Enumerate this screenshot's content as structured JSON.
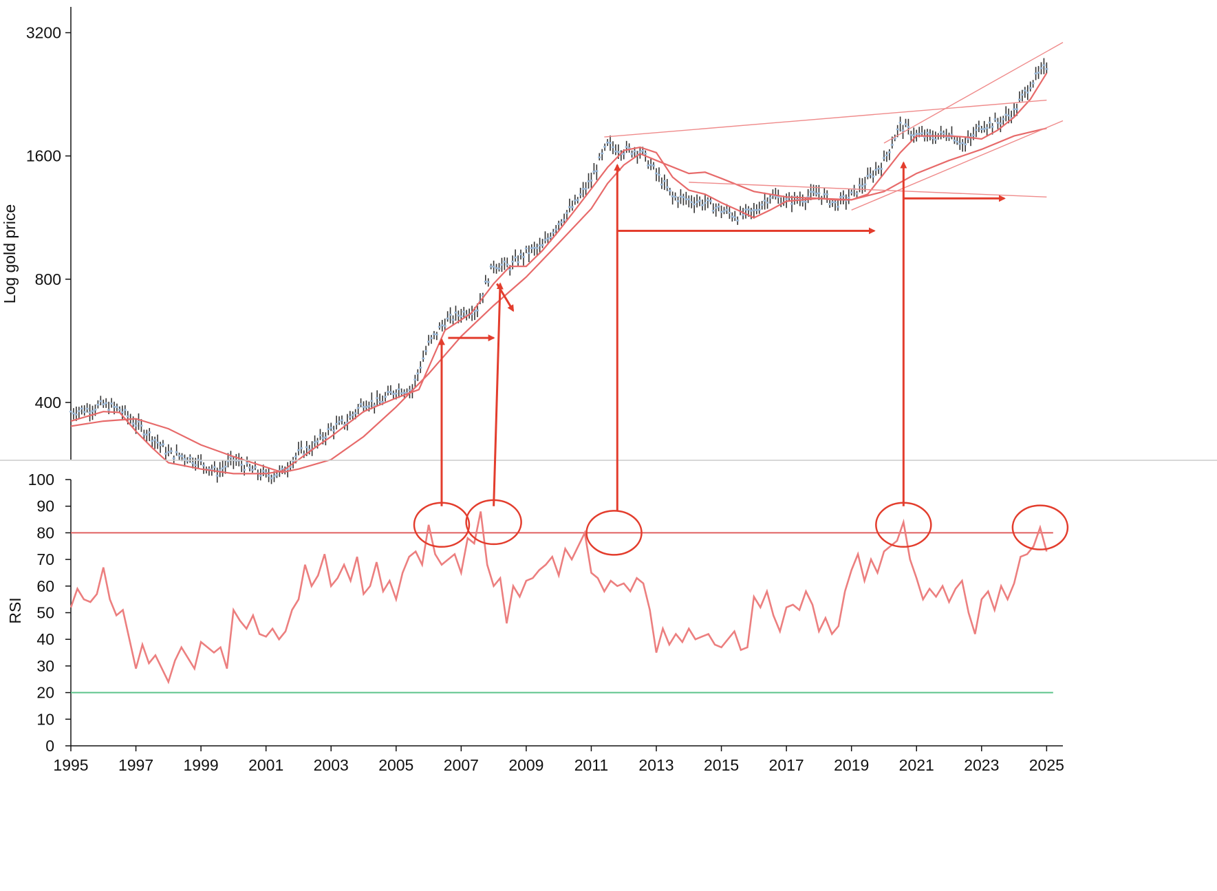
{
  "chart_data": [
    {
      "type": "line",
      "panel": "price",
      "title": "",
      "ylabel": "Log gold price",
      "yscale": "log",
      "ylim": [
        290,
        3700
      ],
      "yticks": [
        400,
        800,
        1600,
        3200
      ],
      "ytick_labels": [
        "400",
        "800",
        "1600",
        "3200"
      ],
      "xlim": [
        1995,
        2025.5
      ],
      "series": [
        {
          "kind": "monthly price (high-low bars)",
          "x": [
            1995,
            1995.5,
            1996,
            1996.5,
            1997,
            1997.5,
            1998,
            1998.5,
            1999,
            1999.5,
            2000,
            2000.5,
            2001,
            2001.5,
            2002,
            2002.5,
            2003,
            2003.5,
            2004,
            2004.5,
            2005,
            2005.5,
            2006,
            2006.5,
            2007,
            2007.5,
            2008,
            2008.5,
            2009,
            2009.5,
            2010,
            2010.5,
            2011,
            2011.5,
            2012,
            2012.5,
            2013,
            2013.5,
            2014,
            2014.5,
            2015,
            2015.5,
            2016,
            2016.5,
            2017,
            2017.5,
            2018,
            2018.5,
            2019,
            2019.5,
            2020,
            2020.5,
            2021,
            2021.5,
            2022,
            2022.5,
            2023,
            2023.5,
            2024,
            2024.5,
            2025
          ],
          "values": [
            380,
            385,
            395,
            385,
            355,
            330,
            300,
            295,
            285,
            270,
            290,
            275,
            265,
            270,
            300,
            315,
            345,
            360,
            400,
            400,
            430,
            430,
            555,
            630,
            660,
            680,
            870,
            860,
            930,
            960,
            1100,
            1220,
            1400,
            1700,
            1650,
            1650,
            1450,
            1270,
            1250,
            1230,
            1180,
            1140,
            1170,
            1280,
            1240,
            1260,
            1300,
            1220,
            1280,
            1400,
            1550,
            1900,
            1800,
            1780,
            1820,
            1700,
            1900,
            1930,
            2050,
            2400,
            2650
          ]
        },
        {
          "name": "",
          "kind": "short moving average",
          "x": [
            1995,
            1996,
            1996.5,
            1997,
            1997.5,
            1998,
            1999,
            2000,
            2001,
            2001.5,
            2002,
            2002.5,
            2003,
            2004,
            2005,
            2005.7,
            2006.5,
            2007.3,
            2008,
            2008.5,
            2009,
            2009.5,
            2010,
            2010.5,
            2011,
            2011.5,
            2012,
            2012.5,
            2013,
            2013.5,
            2014,
            2014.5,
            2015,
            2015.5,
            2016,
            2016.5,
            2017,
            2017.5,
            2018,
            2018.5,
            2019,
            2019.5,
            2020,
            2020.5,
            2021,
            2021.5,
            2022,
            2022.5,
            2023,
            2023.5,
            2024,
            2024.5,
            2025
          ],
          "values": [
            360,
            380,
            378,
            340,
            310,
            285,
            275,
            268,
            268,
            272,
            290,
            310,
            330,
            380,
            410,
            430,
            600,
            660,
            780,
            860,
            860,
            940,
            1050,
            1180,
            1330,
            1500,
            1650,
            1680,
            1630,
            1420,
            1320,
            1290,
            1230,
            1180,
            1130,
            1180,
            1240,
            1250,
            1260,
            1250,
            1250,
            1290,
            1450,
            1630,
            1790,
            1790,
            1790,
            1780,
            1760,
            1850,
            1990,
            2200,
            2550
          ]
        },
        {
          "name": "",
          "kind": "long moving average",
          "x": [
            1995,
            1996,
            1997,
            1998,
            1999,
            2000,
            2001,
            2001.5,
            2002,
            2003,
            2004,
            2005,
            2006,
            2007,
            2008,
            2009,
            2010,
            2011,
            2011.5,
            2012,
            2012.5,
            2013,
            2014,
            2014.5,
            2015,
            2016,
            2017,
            2018,
            2019,
            2020,
            2021,
            2022,
            2023,
            2024,
            2024.5,
            2025
          ],
          "values": [
            350,
            360,
            365,
            345,
            315,
            295,
            278,
            270,
            275,
            290,
            330,
            390,
            470,
            580,
            690,
            810,
            980,
            1190,
            1370,
            1520,
            1620,
            1560,
            1450,
            1460,
            1410,
            1310,
            1270,
            1260,
            1250,
            1310,
            1450,
            1560,
            1660,
            1790,
            1830,
            1870
          ]
        }
      ],
      "trendlines": [
        {
          "x": [
            2011.4,
            2025
          ],
          "values": [
            1780,
            2190
          ]
        },
        {
          "x": [
            2014,
            2025
          ],
          "values": [
            1380,
            1270
          ]
        },
        {
          "x": [
            2019,
            2025.5
          ],
          "values": [
            1180,
            1950
          ]
        },
        {
          "x": [
            2020,
            2025.5
          ],
          "values": [
            1720,
            3030
          ]
        }
      ],
      "annotations": [
        {
          "kind": "arrow",
          "x": [
            2006.4,
            2006.4
          ],
          "values": [
            null,
            570
          ],
          "from_panel": "rsi",
          "from_rsi": 90
        },
        {
          "kind": "arrow",
          "x": [
            2006.6,
            2008.0
          ],
          "values": [
            575,
            575
          ]
        },
        {
          "kind": "arrow",
          "x": [
            2008.0,
            2008.2
          ],
          "values": [
            null,
            780
          ],
          "from_panel": "rsi",
          "from_rsi": 90
        },
        {
          "kind": "arrow",
          "x": [
            2008.1,
            2008.6
          ],
          "values": [
            780,
            670
          ]
        },
        {
          "kind": "arrow",
          "x": [
            2011.8,
            2011.8
          ],
          "values": [
            null,
            1520
          ],
          "from_panel": "rsi",
          "from_rsi": 88
        },
        {
          "kind": "arrow",
          "x": [
            2011.8,
            2019.7
          ],
          "values": [
            1050,
            1050
          ]
        },
        {
          "kind": "arrow",
          "x": [
            2020.6,
            2020.6
          ],
          "values": [
            null,
            1540
          ],
          "from_panel": "rsi",
          "from_rsi": 90
        },
        {
          "kind": "arrow",
          "x": [
            2020.6,
            2023.7
          ],
          "values": [
            1260,
            1260
          ]
        }
      ]
    },
    {
      "type": "line",
      "panel": "rsi",
      "title": "",
      "ylabel": "RSI",
      "ylim": [
        0,
        100
      ],
      "yticks": [
        0,
        10,
        20,
        30,
        40,
        50,
        60,
        70,
        80,
        90,
        100
      ],
      "ytick_labels": [
        "0",
        "10",
        "20",
        "30",
        "40",
        "50",
        "60",
        "70",
        "80",
        "90",
        "100"
      ],
      "xlim": [
        1995,
        2025.5
      ],
      "xticks": [
        1995,
        1997,
        1999,
        2001,
        2003,
        2005,
        2007,
        2009,
        2011,
        2013,
        2015,
        2017,
        2019,
        2021,
        2023,
        2025
      ],
      "xtick_labels": [
        "1995",
        "1997",
        "1999",
        "2001",
        "2003",
        "2005",
        "2007",
        "2009",
        "2011",
        "2013",
        "2015",
        "2017",
        "2019",
        "2021",
        "2023",
        "2025"
      ],
      "series": [
        {
          "name": "",
          "x": [
            1995,
            1995.2,
            1995.4,
            1995.6,
            1995.8,
            1996,
            1996.2,
            1996.4,
            1996.6,
            1996.8,
            1997,
            1997.2,
            1997.4,
            1997.6,
            1997.8,
            1998,
            1998.2,
            1998.4,
            1998.6,
            1998.8,
            1999,
            1999.2,
            1999.4,
            1999.6,
            1999.8,
            2000,
            2000.2,
            2000.4,
            2000.6,
            2000.8,
            2001,
            2001.2,
            2001.4,
            2001.6,
            2001.8,
            2002,
            2002.2,
            2002.4,
            2002.6,
            2002.8,
            2003,
            2003.2,
            2003.4,
            2003.6,
            2003.8,
            2004,
            2004.2,
            2004.4,
            2004.6,
            2004.8,
            2005,
            2005.2,
            2005.4,
            2005.6,
            2005.8,
            2006,
            2006.2,
            2006.4,
            2006.6,
            2006.8,
            2007,
            2007.2,
            2007.4,
            2007.6,
            2007.8,
            2008,
            2008.2,
            2008.4,
            2008.6,
            2008.8,
            2009,
            2009.2,
            2009.4,
            2009.6,
            2009.8,
            2010,
            2010.2,
            2010.4,
            2010.6,
            2010.8,
            2011,
            2011.2,
            2011.4,
            2011.6,
            2011.8,
            2012,
            2012.2,
            2012.4,
            2012.6,
            2012.8,
            2013,
            2013.2,
            2013.4,
            2013.6,
            2013.8,
            2014,
            2014.2,
            2014.4,
            2014.6,
            2014.8,
            2015,
            2015.2,
            2015.4,
            2015.6,
            2015.8,
            2016,
            2016.2,
            2016.4,
            2016.6,
            2016.8,
            2017,
            2017.2,
            2017.4,
            2017.6,
            2017.8,
            2018,
            2018.2,
            2018.4,
            2018.6,
            2018.8,
            2019,
            2019.2,
            2019.4,
            2019.6,
            2019.8,
            2020,
            2020.2,
            2020.4,
            2020.6,
            2020.8,
            2021,
            2021.2,
            2021.4,
            2021.6,
            2021.8,
            2022,
            2022.2,
            2022.4,
            2022.6,
            2022.8,
            2023,
            2023.2,
            2023.4,
            2023.6,
            2023.8,
            2024,
            2024.2,
            2024.4,
            2024.6,
            2024.8,
            2025
          ],
          "values": [
            52,
            59,
            55,
            54,
            57,
            67,
            55,
            49,
            51,
            40,
            29,
            38,
            31,
            34,
            29,
            24,
            32,
            37,
            33,
            29,
            39,
            37,
            35,
            37,
            29,
            51,
            47,
            44,
            49,
            42,
            41,
            44,
            40,
            43,
            51,
            55,
            68,
            60,
            64,
            72,
            60,
            63,
            68,
            62,
            71,
            57,
            60,
            69,
            58,
            62,
            55,
            65,
            71,
            73,
            68,
            83,
            72,
            68,
            70,
            72,
            65,
            78,
            76,
            88,
            68,
            60,
            63,
            46,
            60,
            56,
            62,
            63,
            66,
            68,
            71,
            64,
            74,
            70,
            75,
            80,
            65,
            63,
            58,
            62,
            60,
            61,
            58,
            63,
            61,
            51,
            35,
            44,
            38,
            42,
            39,
            44,
            40,
            41,
            42,
            38,
            37,
            40,
            43,
            36,
            37,
            56,
            52,
            58,
            49,
            43,
            52,
            53,
            51,
            58,
            53,
            43,
            48,
            42,
            45,
            58,
            66,
            72,
            62,
            70,
            65,
            73,
            75,
            77,
            84,
            70,
            63,
            55,
            59,
            56,
            60,
            54,
            59,
            62,
            50,
            42,
            55,
            58,
            51,
            60,
            55,
            61,
            71,
            72,
            75,
            82,
            73
          ]
        }
      ],
      "reference_lines": [
        {
          "value": 80,
          "color": "#e06060"
        },
        {
          "value": 20,
          "color": "#5cc38a"
        }
      ],
      "highlight_circles": [
        {
          "x": 2006.4,
          "value": 83
        },
        {
          "x": 2008.0,
          "value": 84
        },
        {
          "x": 2011.7,
          "value": 80
        },
        {
          "x": 2020.6,
          "value": 83
        },
        {
          "x": 2024.8,
          "value": 82
        }
      ]
    }
  ],
  "colors": {
    "price_bars": "#333333",
    "price_bar_highlight": "#9ab8d8",
    "moving_average": "#e76a6a",
    "trendline": "#ef8a8a",
    "rsi_line": "#ec7f7f",
    "overbought_line": "#e06060",
    "oversold_line": "#5cc38a",
    "annotation": "#e33d2d",
    "axis": "#111111",
    "divider": "#cccccc"
  }
}
